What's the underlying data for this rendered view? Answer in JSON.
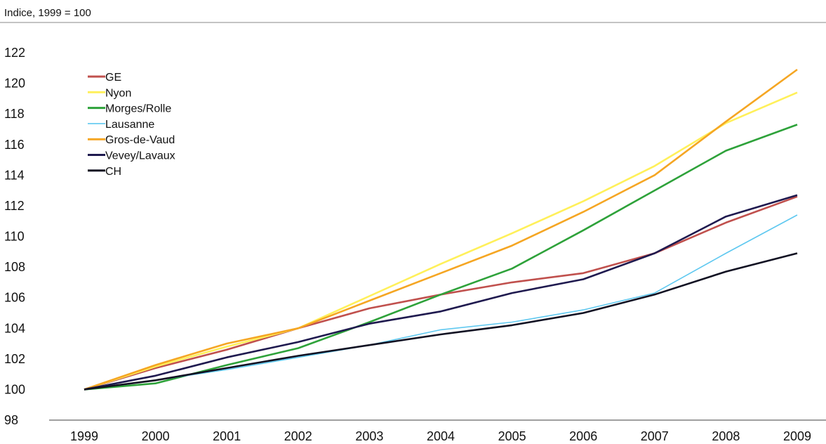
{
  "chart_data": {
    "type": "line",
    "subtitle": "Indice, 1999 = 100",
    "x": [
      "1999",
      "2000",
      "2001",
      "2002",
      "2003",
      "2004",
      "2005",
      "2006",
      "2007",
      "2008",
      "2009"
    ],
    "ylim": [
      98,
      122
    ],
    "yticks": [
      "98",
      "100",
      "102",
      "104",
      "106",
      "108",
      "110",
      "112",
      "114",
      "116",
      "118",
      "120",
      "122"
    ],
    "grid": false,
    "legend_position": "top-left",
    "series": [
      {
        "name": "GE",
        "color": "#c0504d",
        "values": [
          100.0,
          101.4,
          102.6,
          104.0,
          105.3,
          106.2,
          107.0,
          107.6,
          108.9,
          110.9,
          112.6
        ]
      },
      {
        "name": "Nyon",
        "color": "#fff05a",
        "values": [
          100.0,
          101.5,
          102.8,
          104.0,
          106.1,
          108.2,
          110.2,
          112.3,
          114.6,
          117.4,
          119.4
        ]
      },
      {
        "name": "Morges/Rolle",
        "color": "#2ea23a",
        "values": [
          100.0,
          100.4,
          101.6,
          102.7,
          104.4,
          106.2,
          107.9,
          110.4,
          113.0,
          115.6,
          117.3
        ]
      },
      {
        "name": "Lausanne",
        "color": "#5ec8f0",
        "values": [
          100.0,
          100.6,
          101.3,
          102.1,
          102.9,
          103.9,
          104.4,
          105.2,
          106.3,
          108.9,
          111.4
        ]
      },
      {
        "name": "Gros-de-Vaud",
        "color": "#f5a623",
        "values": [
          100.0,
          101.6,
          103.0,
          104.0,
          105.8,
          107.6,
          109.4,
          111.6,
          114.0,
          117.5,
          120.9
        ]
      },
      {
        "name": "Vevey/Lavaux",
        "color": "#1f1a4f",
        "values": [
          100.0,
          100.9,
          102.1,
          103.1,
          104.3,
          105.1,
          106.3,
          107.2,
          108.9,
          111.3,
          112.7
        ]
      },
      {
        "name": "CH",
        "color": "#111122",
        "values": [
          100.0,
          100.6,
          101.4,
          102.2,
          102.9,
          103.6,
          104.2,
          105.0,
          106.2,
          107.7,
          108.9
        ]
      }
    ]
  }
}
